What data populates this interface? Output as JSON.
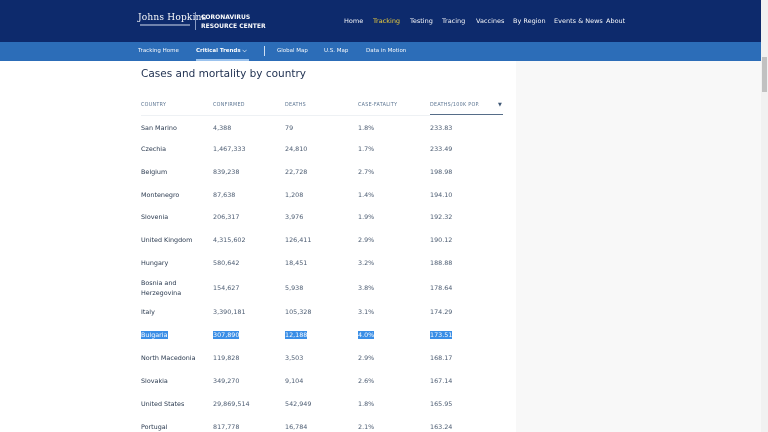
{
  "header": {
    "logo_line1": "Johns Hopkins",
    "logo_line2": "University of Medicine",
    "title_line1": "CORONAVIRUS",
    "title_line2": "RESOURCE CENTER",
    "nav": [
      {
        "label": "Home"
      },
      {
        "label": "Tracking",
        "active": true
      },
      {
        "label": "Testing"
      },
      {
        "label": "Tracing"
      },
      {
        "label": "Vaccines"
      },
      {
        "label": "By Region"
      },
      {
        "label": "Events & News"
      },
      {
        "label": "About"
      }
    ]
  },
  "subnav": {
    "items": [
      {
        "label": "Tracking Home"
      },
      {
        "label": "Critical Trends ⌵",
        "active": true
      },
      {
        "label": "Global Map"
      },
      {
        "label": "U.S. Map"
      },
      {
        "label": "Data in Motion"
      }
    ]
  },
  "main": {
    "title": "Cases and mortality by country",
    "columns": [
      "COUNTRY",
      "CONFIRMED",
      "DEATHS",
      "CASE-FATALITY",
      "DEATHS/100K POP."
    ],
    "sort_indicator": "▼",
    "rows": [
      [
        "San Marino",
        "4,388",
        "79",
        "1.8%",
        "233.83"
      ],
      [
        "Czechia",
        "1,467,333",
        "24,810",
        "1.7%",
        "233.49"
      ],
      [
        "Belgium",
        "839,238",
        "22,728",
        "2.7%",
        "198.98"
      ],
      [
        "Montenegro",
        "87,638",
        "1,208",
        "1.4%",
        "194.10"
      ],
      [
        "Slovenia",
        "206,317",
        "3,976",
        "1.9%",
        "192.32"
      ],
      [
        "United Kingdom",
        "4,315,602",
        "126,411",
        "2.9%",
        "190.12"
      ],
      [
        "Hungary",
        "580,642",
        "18,451",
        "3.2%",
        "188.88"
      ],
      [
        "Bosnia and\nHerzegovina",
        "154,627",
        "5,938",
        "3.8%",
        "178.64"
      ],
      [
        "Italy",
        "3,390,181",
        "105,328",
        "3.1%",
        "174.29"
      ],
      [
        "Bulgaria",
        "307,890",
        "12,188",
        "4.0%",
        "173.51"
      ],
      [
        "North Macedonia",
        "119,828",
        "3,503",
        "2.9%",
        "168.17"
      ],
      [
        "Slovakia",
        "349,270",
        "9,104",
        "2.6%",
        "167.14"
      ],
      [
        "United States",
        "29,869,514",
        "542,949",
        "1.8%",
        "165.95"
      ],
      [
        "Portugal",
        "817,778",
        "16,784",
        "2.1%",
        "163.24"
      ]
    ],
    "highlighted_row": "Bulgaria"
  },
  "colors": {
    "header": "#0d2a6c",
    "subnav": "#2c6db8",
    "active_nav": "#f3d33a",
    "selection": "#3a8ee6"
  }
}
